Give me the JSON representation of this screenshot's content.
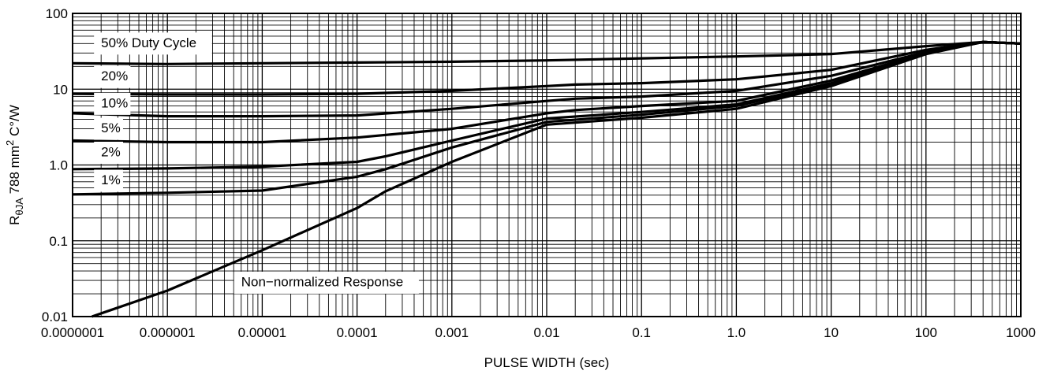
{
  "chart_data": {
    "type": "line",
    "title": "",
    "xlabel": "PULSE WIDTH (sec)",
    "ylabel_main": "R",
    "ylabel_sub": "θJA",
    "ylabel_rest": " 788 mm",
    "ylabel_sup": "2",
    "ylabel_end": " C°/W",
    "x_scale": "log",
    "y_scale": "log",
    "xlim": [
      1e-07,
      1000
    ],
    "ylim": [
      0.01,
      100
    ],
    "grid": true,
    "x_tick_values": [
      1e-07,
      1e-06,
      1e-05,
      0.0001,
      0.001,
      0.01,
      0.1,
      1,
      10,
      100,
      1000
    ],
    "x_tick_labels": [
      "0.0000001",
      "0.000001",
      "0.00001",
      "0.0001",
      "0.001",
      "0.01",
      "0.1",
      "1.0",
      "10",
      "100",
      "1000"
    ],
    "y_tick_values": [
      0.01,
      0.1,
      1,
      10,
      100
    ],
    "y_tick_labels": [
      "0.01",
      "0.1",
      "1.0",
      "10",
      "100"
    ],
    "series": [
      {
        "name": "50% Duty Cycle",
        "x": [
          1e-07,
          1e-06,
          1e-05,
          0.0001,
          0.001,
          0.01,
          0.1,
          1,
          10,
          100,
          400,
          1000
        ],
        "y": [
          22,
          21.5,
          22,
          22.5,
          23,
          24,
          25.5,
          27,
          29,
          37,
          42,
          40
        ]
      },
      {
        "name": "20%",
        "x": [
          1e-07,
          1e-06,
          1e-05,
          0.0001,
          0.001,
          0.01,
          0.02,
          0.1,
          1,
          10,
          100,
          400,
          1000
        ],
        "y": [
          8.7,
          8.5,
          8.5,
          8.7,
          9.5,
          11,
          11.5,
          12,
          13.5,
          18,
          33,
          42,
          40
        ]
      },
      {
        "name": "10%",
        "x": [
          1e-07,
          1e-06,
          1e-05,
          0.0001,
          0.001,
          0.01,
          0.02,
          0.1,
          1,
          10,
          100,
          400,
          1000
        ],
        "y": [
          4.8,
          4.4,
          4.4,
          4.5,
          5.5,
          7,
          7.5,
          8,
          9.5,
          15,
          31,
          42,
          40
        ]
      },
      {
        "name": "5%",
        "x": [
          1e-07,
          1e-06,
          1e-05,
          0.0001,
          0.001,
          0.01,
          0.02,
          0.1,
          1,
          10,
          100,
          400,
          1000
        ],
        "y": [
          2.1,
          2.0,
          2.0,
          2.3,
          3.0,
          4.8,
          5.3,
          6,
          7,
          13,
          30,
          42,
          40
        ]
      },
      {
        "name": "2%",
        "x": [
          1e-07,
          1e-06,
          1e-05,
          0.0001,
          0.0002,
          0.001,
          0.01,
          0.1,
          1,
          10,
          100,
          400,
          1000
        ],
        "y": [
          0.88,
          0.9,
          0.95,
          1.1,
          1.3,
          2.1,
          4.1,
          5,
          6.3,
          12,
          30,
          42,
          40
        ]
      },
      {
        "name": "1%",
        "x": [
          1e-07,
          1e-06,
          1e-05,
          0.0001,
          0.0002,
          0.001,
          0.01,
          0.1,
          1,
          10,
          100,
          400,
          1000
        ],
        "y": [
          0.41,
          0.43,
          0.46,
          0.7,
          0.88,
          1.7,
          3.7,
          4.6,
          6,
          11.5,
          30,
          42,
          40
        ]
      },
      {
        "name": "Non−normalized Response",
        "x": [
          1.6e-07,
          1e-06,
          1e-05,
          0.0001,
          0.0002,
          0.001,
          0.01,
          0.1,
          1,
          10,
          100,
          400,
          1000
        ],
        "y": [
          0.01,
          0.022,
          0.075,
          0.27,
          0.45,
          1.1,
          3.4,
          4.2,
          5.5,
          11,
          29,
          42,
          40
        ]
      }
    ],
    "annotations": [
      {
        "text": "50% Duty Cycle",
        "series": 0
      },
      {
        "text": "20%",
        "series": 1
      },
      {
        "text": "10%",
        "series": 2
      },
      {
        "text": "5%",
        "series": 3
      },
      {
        "text": "2%",
        "series": 4
      },
      {
        "text": "1%",
        "series": 5
      },
      {
        "text": "Non−normalized Response",
        "series": 6
      }
    ]
  }
}
